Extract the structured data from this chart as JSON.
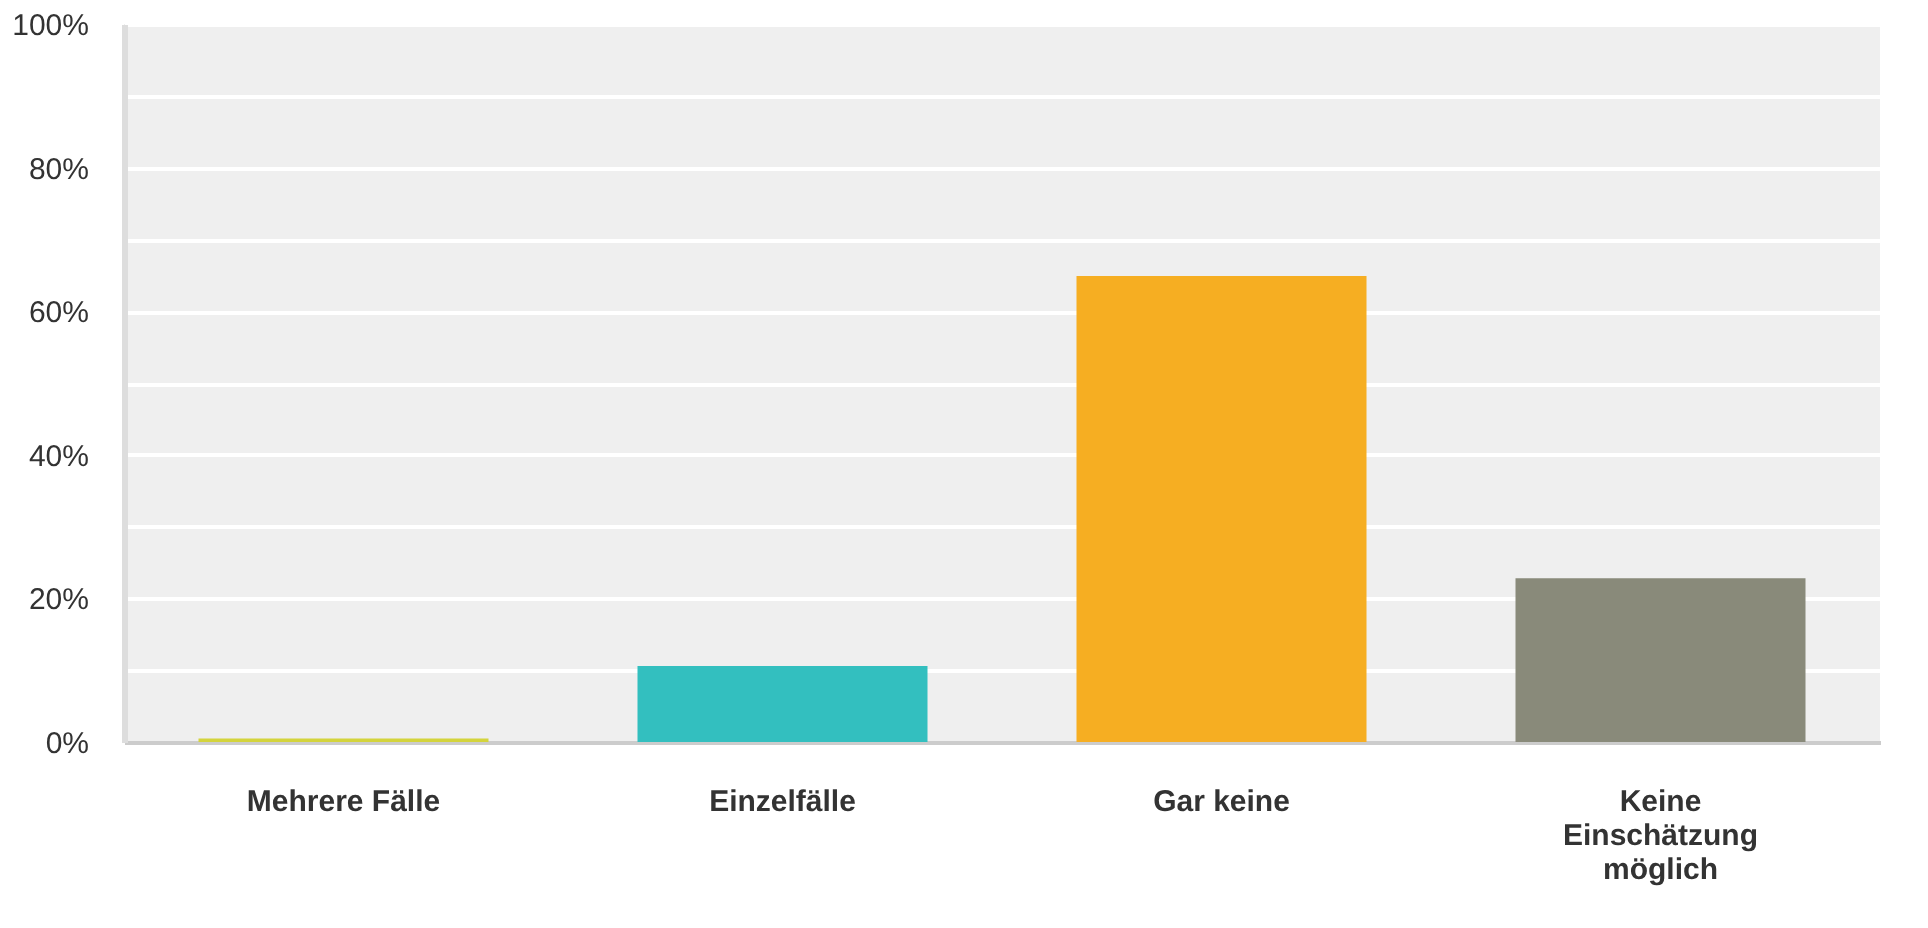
{
  "chart_data": {
    "type": "bar",
    "categories": [
      "Mehrere Fälle",
      "Einzelfälle",
      "Gar keine",
      "Keine Einschätzung möglich"
    ],
    "values": [
      0.5,
      10.6,
      64.9,
      22.8
    ],
    "colors": [
      "#d4d43c",
      "#33bfbf",
      "#f6ae22",
      "#898a7a"
    ],
    "ylim": [
      0,
      100
    ],
    "yticks": [
      {
        "value": 0,
        "label": "0%"
      },
      {
        "value": 10,
        "label": null
      },
      {
        "value": 20,
        "label": "20%"
      },
      {
        "value": 30,
        "label": null
      },
      {
        "value": 40,
        "label": "40%"
      },
      {
        "value": 50,
        "label": null
      },
      {
        "value": 60,
        "label": "60%"
      },
      {
        "value": 70,
        "label": null
      },
      {
        "value": 80,
        "label": "80%"
      },
      {
        "value": 90,
        "label": null
      },
      {
        "value": 100,
        "label": "100%"
      }
    ],
    "grid": "y"
  }
}
